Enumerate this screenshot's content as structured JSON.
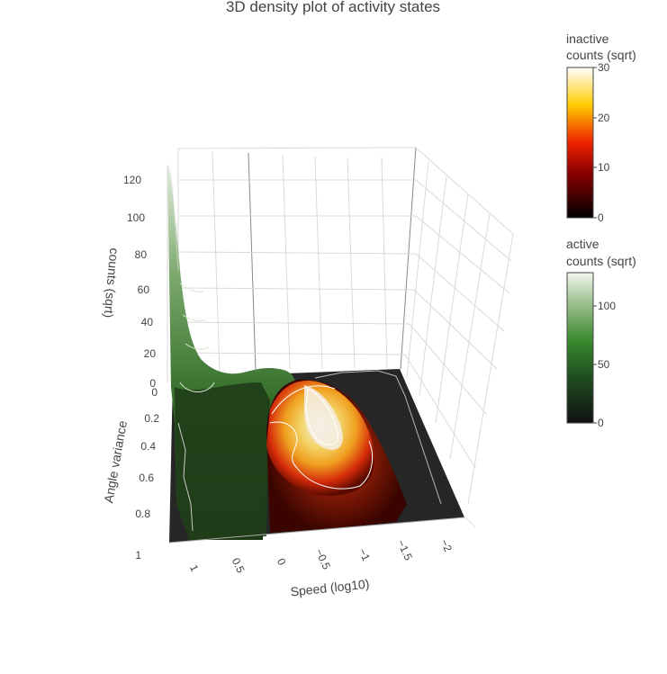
{
  "chart_data": {
    "type": "surface",
    "title": "3D density plot of activity states",
    "x_axis": {
      "label": "Speed (log10)",
      "ticks": [
        "1",
        "0.5",
        "0",
        "−0.5",
        "−1",
        "−1.5",
        "−2"
      ],
      "range": [
        1.3,
        -2.3
      ]
    },
    "y_axis": {
      "label": "Angle variance",
      "ticks": [
        "0",
        "0.2",
        "0.4",
        "0.6",
        "0.8",
        "1"
      ],
      "range": [
        0,
        1
      ]
    },
    "z_axis": {
      "label": "counts (sqrt)",
      "ticks": [
        "0",
        "20",
        "40",
        "60",
        "80",
        "100",
        "120"
      ],
      "range": [
        0,
        130
      ]
    },
    "series": [
      {
        "name": "active",
        "colorbar_title": [
          "active",
          "counts (sqrt)"
        ],
        "colorbar_ticks": [
          "0",
          "50",
          "100"
        ],
        "colorbar_range": [
          0,
          128
        ],
        "colorscale": [
          "#111111",
          "#1f4d1f",
          "#3a8a2e",
          "#9dc08f",
          "#f2f7ee"
        ],
        "speed_range": [
          1.3,
          0.02
        ],
        "peak": {
          "speed": 1.3,
          "angle_variance": 0.0,
          "counts": 128
        }
      },
      {
        "name": "inactive",
        "colorbar_title": [
          "inactive",
          "counts (sqrt)"
        ],
        "colorbar_ticks": [
          "0",
          "10",
          "20",
          "30"
        ],
        "colorbar_range": [
          0,
          30
        ],
        "colorscale": [
          "#000000",
          "#8b0000",
          "#ee2200",
          "#ffcc00",
          "#ffffff"
        ],
        "speed_range": [
          0.02,
          -2.3
        ],
        "peak": {
          "speed": -0.7,
          "angle_variance": 0.15,
          "counts": 12
        }
      }
    ]
  }
}
